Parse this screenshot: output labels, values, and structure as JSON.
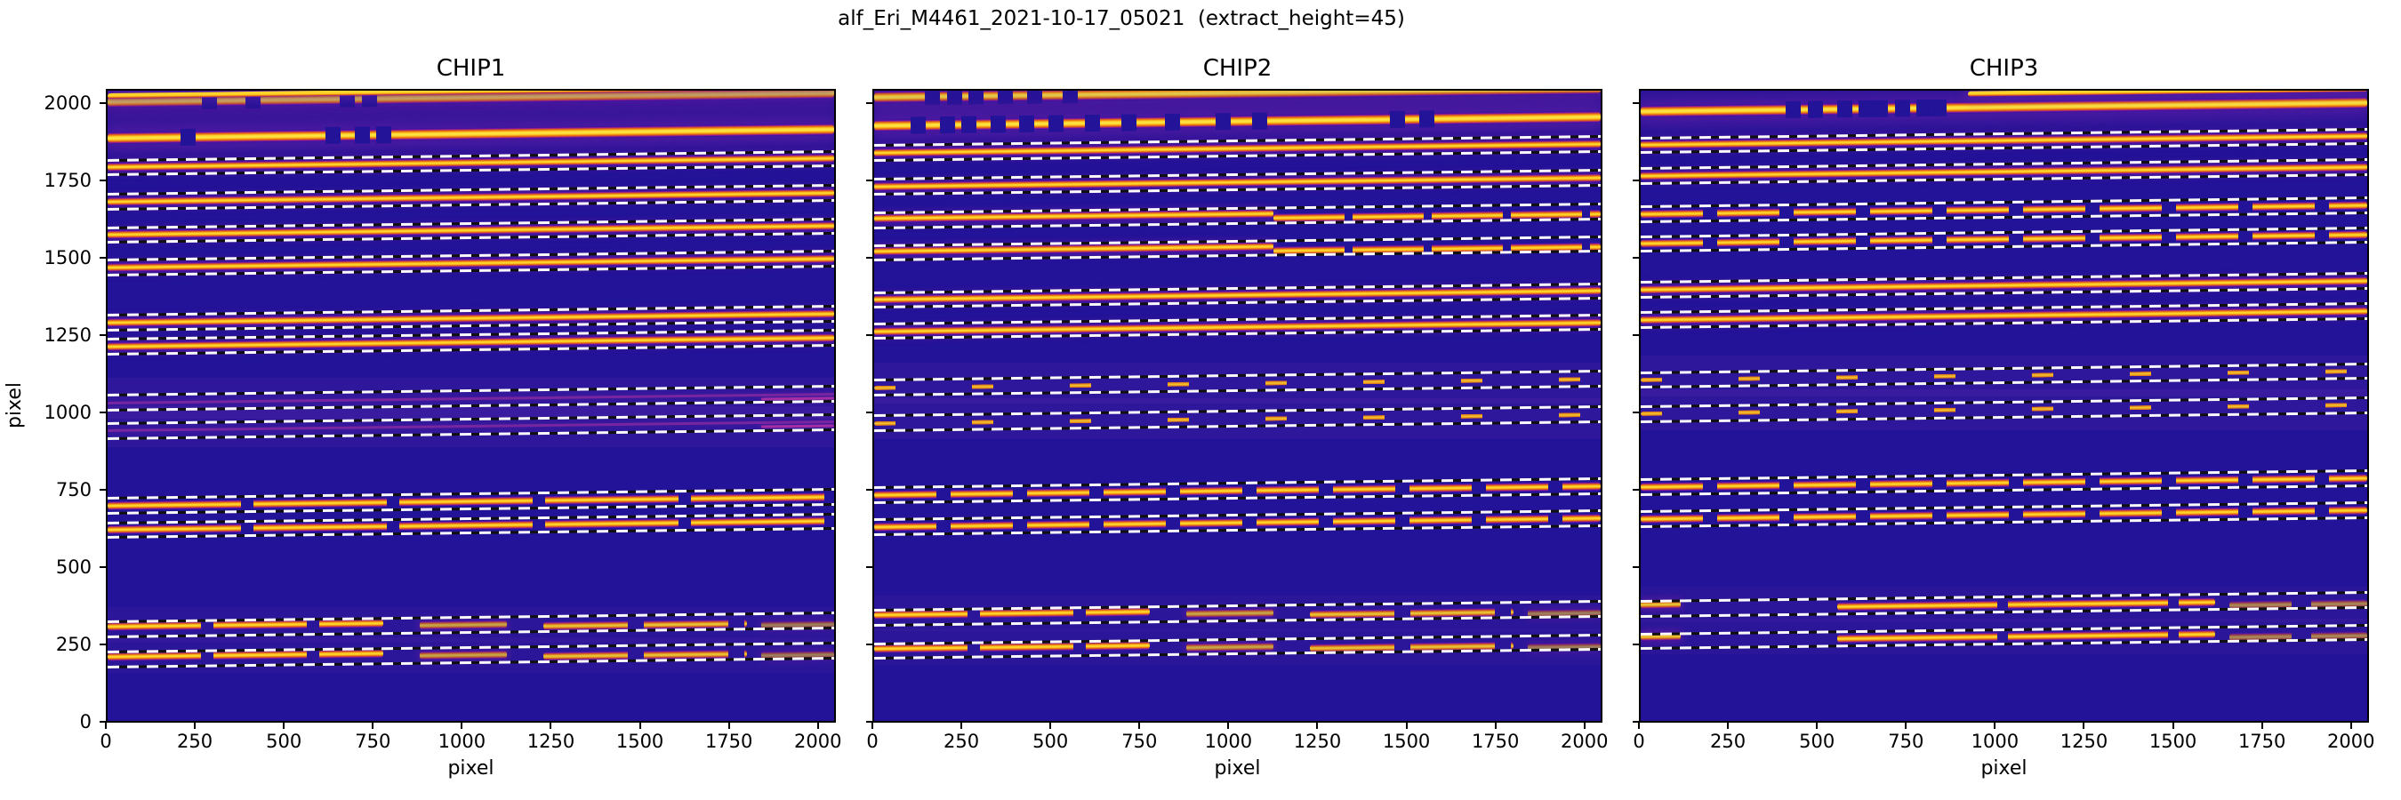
{
  "figure": {
    "suptitle": "alf_Eri_M4461_2021-10-17_05021  (extract_height=45)"
  },
  "chart_data": {
    "type": "heatmap",
    "description": "Three echelle spectrograph detector images (plasma colormap) with extracted order traces; white dashed lines mark extraction windows of height 45 pixels around each spectral order.",
    "suptitle": "alf_Eri_M4461_2021-10-17_05021  (extract_height=45)",
    "extract_height": 45,
    "xlabel": "pixel",
    "ylabel": "pixel",
    "x_range": [
      0,
      2048
    ],
    "y_range": [
      0,
      2048
    ],
    "x_ticks": [
      0,
      250,
      500,
      750,
      1000,
      1250,
      1500,
      1750,
      2000
    ],
    "y_ticks": [
      0,
      250,
      500,
      750,
      1000,
      1250,
      1500,
      1750,
      2000
    ],
    "y_tick_labels_visible": [
      true,
      false,
      false
    ],
    "window_half": 24,
    "slope_deg": -0.7,
    "colors": {
      "background": "#231398",
      "core": "#fdd32a",
      "edge": "#e8690b",
      "fringe": "#7c0fa8",
      "faint": "#c133a5",
      "dash_white": "#fafafa",
      "dash_dark": "#101010"
    },
    "panels": [
      {
        "title": "CHIP1",
        "saturated_orders": [
          {
            "y": 2024,
            "gaps": [
              0.13,
              0.19,
              0.32,
              0.35
            ]
          },
          {
            "y": 1906,
            "gaps": [
              0.1,
              0.3,
              0.34,
              0.37
            ]
          }
        ],
        "edge_line": {
          "y": 2044,
          "from": 0.0,
          "to": 1.0
        },
        "orders": [
          {
            "y": 1812,
            "pattern": "solid"
          },
          {
            "y": 1701,
            "pattern": "solid"
          },
          {
            "y": 1594,
            "pattern": "solid"
          },
          {
            "y": 1489,
            "pattern": "solid"
          },
          {
            "y": 1310,
            "pattern": "solid"
          },
          {
            "y": 1233,
            "pattern": "solid"
          },
          {
            "y": 1052,
            "pattern": "faint"
          },
          {
            "y": 961,
            "pattern": "faint"
          },
          {
            "y": 718,
            "pattern": "clumps-long"
          },
          {
            "y": 640,
            "pattern": "clumps-long"
          },
          {
            "y": 320,
            "pattern": "left-bright"
          },
          {
            "y": 222,
            "pattern": "left-bright"
          }
        ]
      },
      {
        "title": "CHIP2",
        "saturated_orders": [
          {
            "y": 2040,
            "gaps": [
              0.07,
              0.1,
              0.13,
              0.17,
              0.21,
              0.26
            ]
          },
          {
            "y": 1948,
            "gaps": [
              0.05,
              0.09,
              0.12,
              0.16,
              0.2,
              0.24,
              0.29,
              0.34,
              0.4,
              0.47,
              0.52,
              0.71,
              0.75
            ]
          }
        ],
        "edge_line": null,
        "orders": [
          {
            "y": 1859,
            "pattern": "solid"
          },
          {
            "y": 1751,
            "pattern": "solid"
          },
          {
            "y": 1641,
            "pattern": "clumps-right"
          },
          {
            "y": 1536,
            "pattern": "clumps-right"
          },
          {
            "y": 1384,
            "pattern": "solid"
          },
          {
            "y": 1283,
            "pattern": "solid"
          },
          {
            "y": 1100,
            "pattern": "dots"
          },
          {
            "y": 986,
            "pattern": "dots"
          },
          {
            "y": 754,
            "pattern": "clumps"
          },
          {
            "y": 650,
            "pattern": "clumps"
          },
          {
            "y": 358,
            "pattern": "left-bright"
          },
          {
            "y": 249,
            "pattern": "left-bright"
          }
        ]
      },
      {
        "title": "CHIP3",
        "saturated_orders": [
          {
            "y": 1993,
            "gaps": [
              0.2,
              0.23,
              0.27,
              0.3,
              0.32,
              0.35,
              0.38,
              0.4
            ]
          }
        ],
        "edge_line": {
          "y": 2044,
          "from": 0.45,
          "to": 1.0
        },
        "orders": [
          {
            "y": 1884,
            "pattern": "solid"
          },
          {
            "y": 1784,
            "pattern": "solid"
          },
          {
            "y": 1662,
            "pattern": "clumps"
          },
          {
            "y": 1565,
            "pattern": "clumps"
          },
          {
            "y": 1417,
            "pattern": "solid"
          },
          {
            "y": 1320,
            "pattern": "solid"
          },
          {
            "y": 1125,
            "pattern": "dots"
          },
          {
            "y": 1015,
            "pattern": "dots"
          },
          {
            "y": 780,
            "pattern": "clumps"
          },
          {
            "y": 676,
            "pattern": "clumps"
          },
          {
            "y": 385,
            "pattern": "mid-bright"
          },
          {
            "y": 281,
            "pattern": "mid-bright"
          }
        ]
      }
    ]
  }
}
